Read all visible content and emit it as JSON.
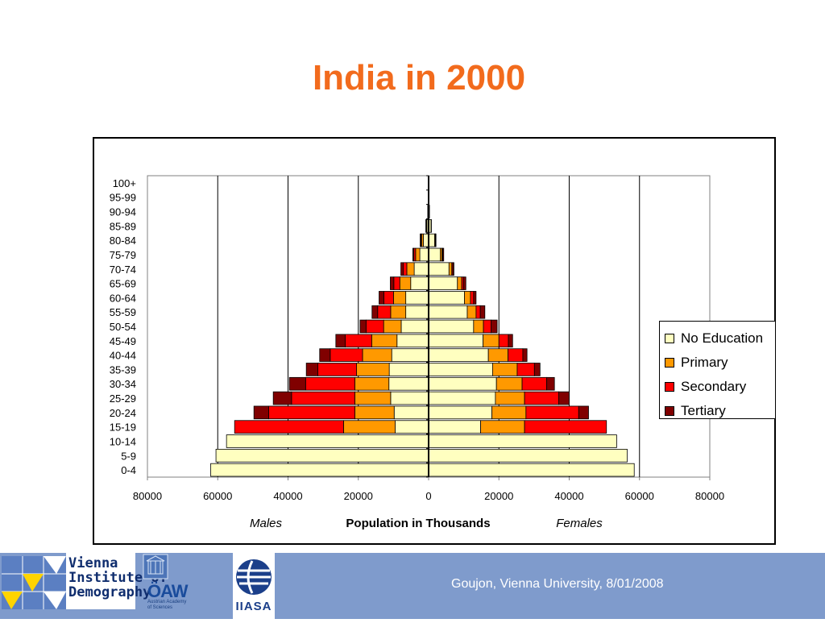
{
  "slide": {
    "title": "India in 2000",
    "footer_text": "Goujon,  Vienna University, 8/01/2008"
  },
  "logos": {
    "vid_line1": "Vienna",
    "vid_line2": "Institute of",
    "vid_line3": "Demography",
    "oaw": "ÖAW",
    "oaw_sub": "Austrian Academy of Sciences",
    "iiasa": "IIASA"
  },
  "chart_data": {
    "type": "bar",
    "subtype": "population-pyramid-stacked",
    "categories": [
      "0-4",
      "5-9",
      "10-14",
      "15-19",
      "20-24",
      "25-29",
      "30-34",
      "35-39",
      "40-44",
      "45-49",
      "50-54",
      "55-59",
      "60-64",
      "65-69",
      "70-74",
      "75-79",
      "80-84",
      "85-89",
      "90-94",
      "95-99",
      "100+"
    ],
    "series": [
      {
        "name": "No Education",
        "color": "#ffffc0",
        "males": [
          62000,
          60500,
          57500,
          9500,
          9800,
          10800,
          11300,
          11200,
          10500,
          9000,
          7800,
          6500,
          6500,
          5100,
          4100,
          2500,
          1500,
          500,
          200,
          100,
          50
        ],
        "females": [
          58500,
          56500,
          53500,
          14800,
          18000,
          19000,
          19300,
          18200,
          17000,
          15500,
          12800,
          11000,
          10200,
          8200,
          5800,
          3300,
          1700,
          700,
          250,
          100,
          50
        ]
      },
      {
        "name": "Primary",
        "color": "#ff9900",
        "males": [
          0,
          0,
          0,
          14700,
          11200,
          10200,
          9700,
          9300,
          8300,
          7200,
          5000,
          4300,
          3500,
          3100,
          2100,
          1200,
          500,
          200,
          50,
          0,
          0
        ],
        "females": [
          0,
          0,
          0,
          12500,
          9700,
          8300,
          7300,
          7000,
          5600,
          4500,
          2800,
          2500,
          1700,
          1200,
          800,
          500,
          200,
          100,
          0,
          0,
          0
        ]
      },
      {
        "name": "Secondary",
        "color": "#ff0000",
        "males": [
          0,
          0,
          0,
          31000,
          24500,
          18000,
          14000,
          11000,
          9200,
          7500,
          5000,
          3700,
          2700,
          1700,
          1000,
          500,
          200,
          100,
          0,
          0,
          0
        ],
        "females": [
          0,
          0,
          0,
          23300,
          15000,
          9700,
          7000,
          4900,
          4200,
          2700,
          2200,
          1200,
          900,
          500,
          300,
          200,
          100,
          0,
          0,
          0,
          0
        ]
      },
      {
        "name": "Tertiary",
        "color": "#800000",
        "males": [
          0,
          0,
          0,
          0,
          4200,
          5200,
          4600,
          3300,
          3000,
          2700,
          1700,
          1600,
          1400,
          1000,
          700,
          300,
          200,
          0,
          0,
          0,
          0
        ],
        "females": [
          0,
          0,
          0,
          0,
          2800,
          3000,
          2200,
          1600,
          1200,
          1200,
          1700,
          1300,
          700,
          700,
          300,
          300,
          100,
          0,
          0,
          0,
          0
        ]
      }
    ],
    "xlim": [
      -80000,
      80000
    ],
    "xticks": [
      "80000",
      "60000",
      "40000",
      "20000",
      "0",
      "20000",
      "40000",
      "60000",
      "80000"
    ],
    "xlabel": "Population in Thousands",
    "left_label": "Males",
    "right_label": "Females",
    "grid": "vertical",
    "legend_position": "right"
  }
}
